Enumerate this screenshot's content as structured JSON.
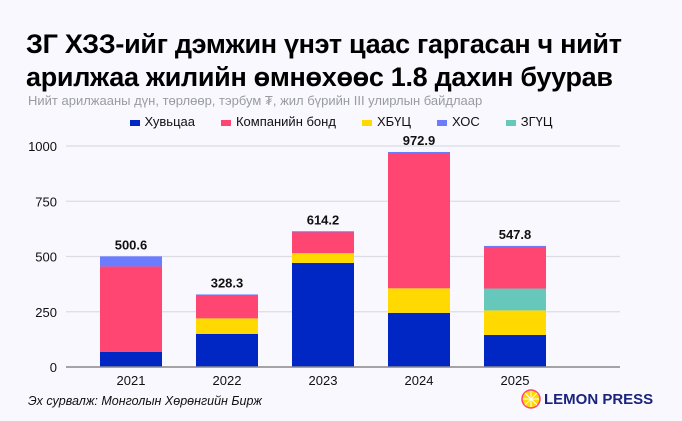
{
  "title_line1": "ЗГ ХЗЗ-ийг дэмжин үнэт цаас гаргасан ч нийт",
  "title_line2": "арилжаа жилийн өмнөхөөс 1.8 дахин буурав",
  "subtitle": "Нийт арилжааны дүн, төрлөөр, тэрбум ₮, жил бүрийн III улирлын байдлаар",
  "source": "Эх сурвалж: Монголын Хөрөнгийн Бирж",
  "logo_text": "LEMON PRESS",
  "chart_data": {
    "type": "bar",
    "stacked": true,
    "categories": [
      "2021",
      "2022",
      "2023",
      "2024",
      "2025"
    ],
    "series": [
      {
        "name": "Хувьцаа",
        "color": "#0026c4",
        "values": [
          68,
          150,
          471,
          245,
          145
        ]
      },
      {
        "name": "Компанийн бонд",
        "color": "#ff4571",
        "values": [
          387,
          107,
          96,
          613,
          190
        ]
      },
      {
        "name": "ХБҮЦ",
        "color": "#ffd900",
        "values": [
          0,
          70,
          44,
          111,
          111
        ]
      },
      {
        "name": "ХОС",
        "color": "#6b7cff",
        "values": [
          45.6,
          1.3,
          3.2,
          3.9,
          2.8
        ]
      },
      {
        "name": "ЗГҮЦ",
        "color": "#66c8bb",
        "values": [
          0,
          0,
          0,
          0,
          99
        ]
      }
    ],
    "stack_order": [
      "Хувьцаа",
      "ХБҮЦ",
      "ЗГҮЦ",
      "Компанийн бонд",
      "ХОС"
    ],
    "totals": [
      "500.6",
      "328.3",
      "614.2",
      "972.9",
      "547.8"
    ],
    "yticks": [
      "0",
      "250",
      "500",
      "750",
      "1000"
    ],
    "ylim": [
      0,
      1000
    ],
    "grid": true,
    "legend_position": "top"
  }
}
